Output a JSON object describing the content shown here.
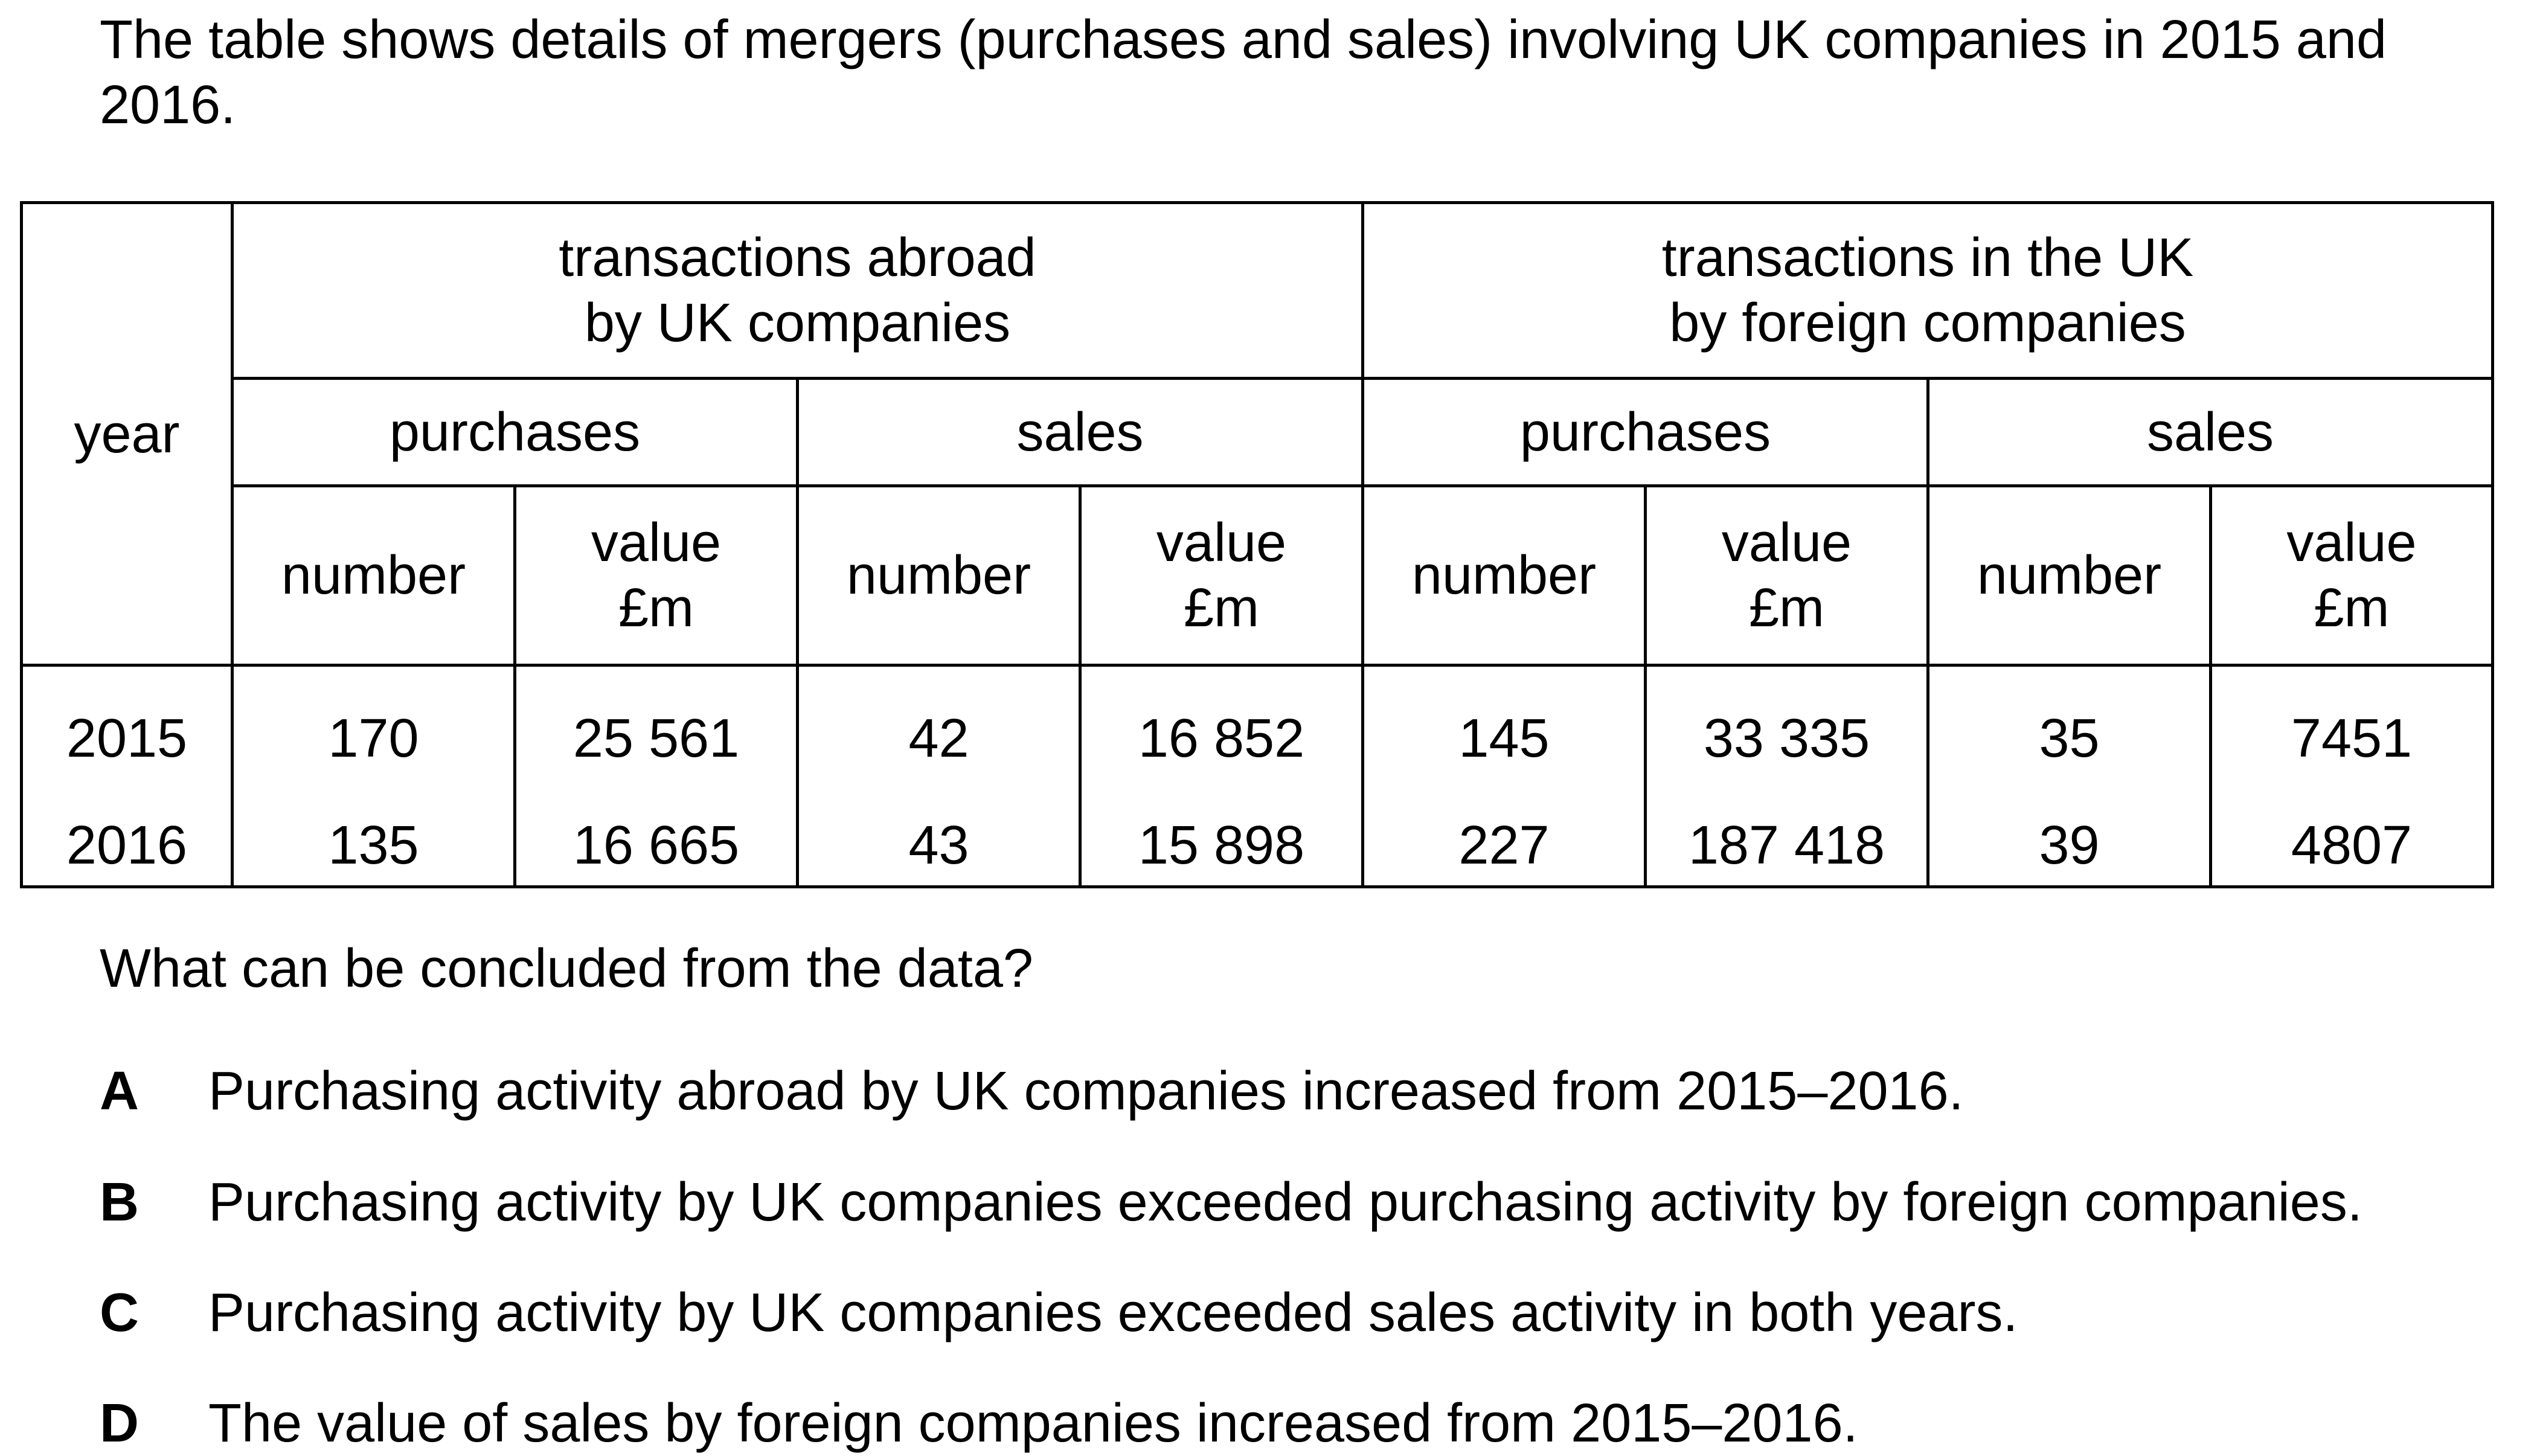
{
  "intro": "The table shows details of mergers (purchases and sales) involving UK companies in 2015 and 2016.",
  "table": {
    "year_header": "year",
    "group_abroad": [
      "transactions abroad",
      "by UK companies"
    ],
    "group_uk": [
      "transactions in the UK",
      "by foreign companies"
    ],
    "sub_purchases": "purchases",
    "sub_sales": "sales",
    "col_number": "number",
    "col_value": [
      "value",
      "£m"
    ],
    "rows": [
      {
        "year": "2015",
        "cells": [
          "170",
          "25 561",
          "42",
          "16 852",
          "145",
          "33 335",
          "35",
          "7451"
        ]
      },
      {
        "year": "2016",
        "cells": [
          "135",
          "16 665",
          "43",
          "15 898",
          "227",
          "187 418",
          "39",
          "4807"
        ]
      }
    ]
  },
  "question": "What can be concluded from the data?",
  "options": [
    {
      "letter": "A",
      "text": "Purchasing activity abroad by UK companies increased from 2015–2016."
    },
    {
      "letter": "B",
      "text": "Purchasing activity by UK companies exceeded purchasing activity by foreign companies."
    },
    {
      "letter": "C",
      "text": "Purchasing activity by UK companies exceeded sales activity in both years."
    },
    {
      "letter": "D",
      "text": "The value of sales by foreign companies increased from 2015–2016."
    }
  ]
}
